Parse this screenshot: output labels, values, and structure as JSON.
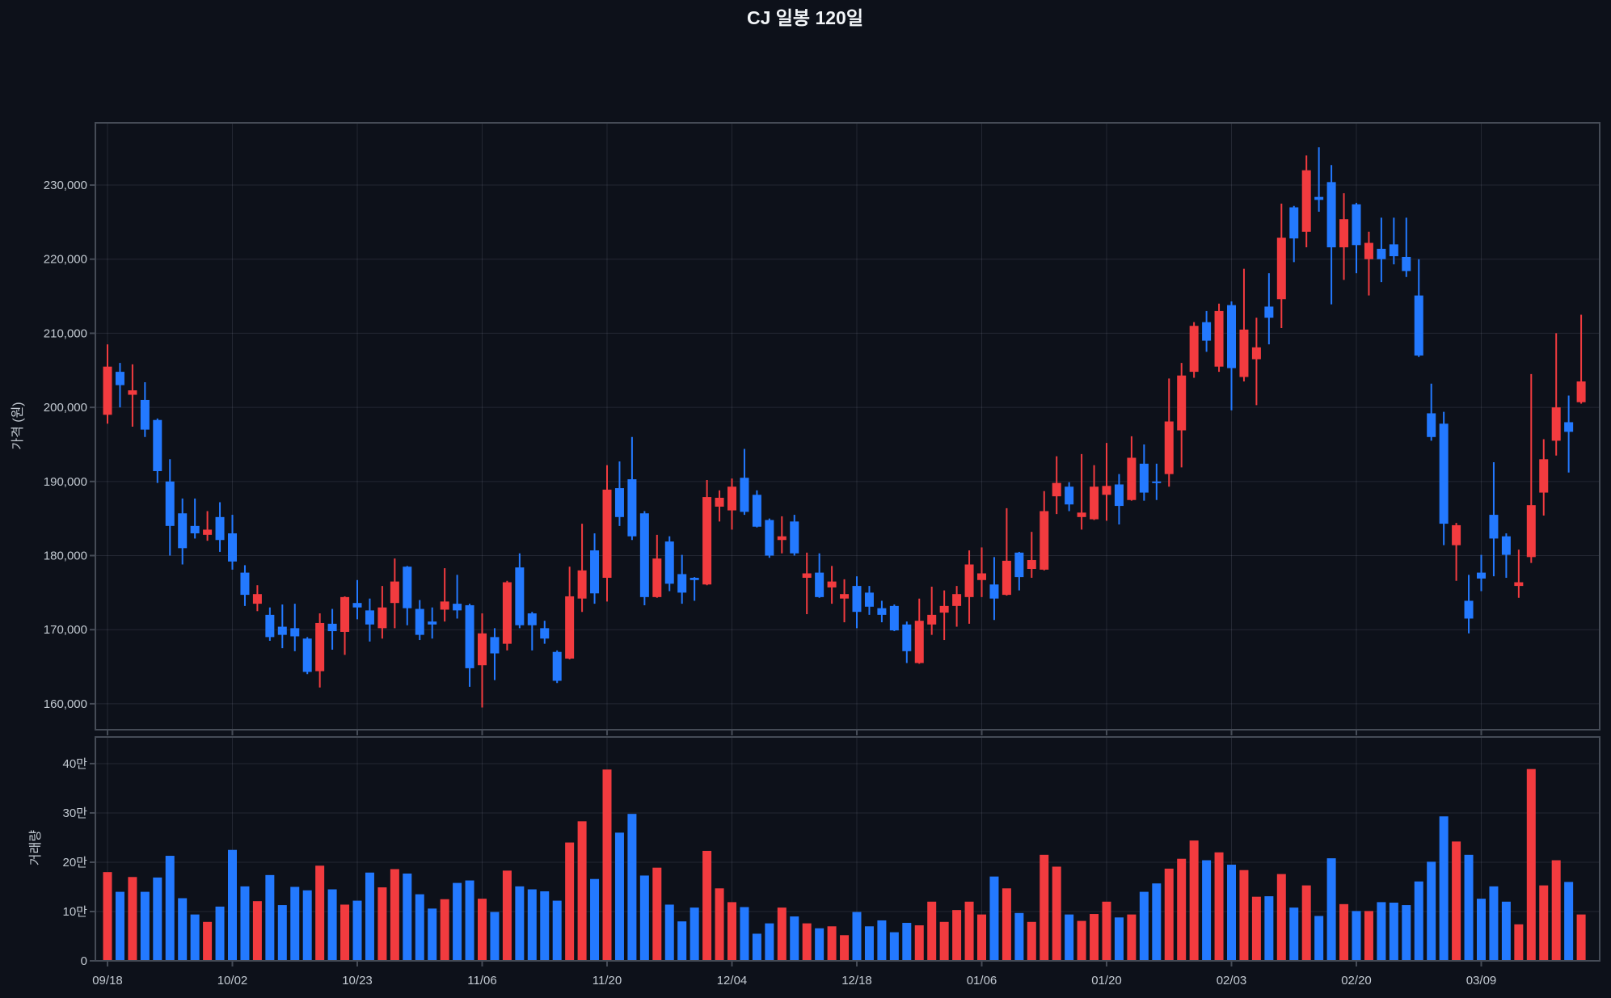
{
  "title": "CJ 일봉 120일",
  "colors": {
    "background": "#0d111a",
    "up": "#f23b3f",
    "down": "#2379ff",
    "grid": "rgba(170,180,200,0.14)",
    "border": "#454b56",
    "tick_text": "#c3cad2",
    "title_text": "#f2f5f8"
  },
  "chart_data": {
    "type": "candlestick",
    "title": "CJ 일봉 120일",
    "legend": "none",
    "grid": true,
    "price_axis": {
      "label": "가격 (원)",
      "ticks": [
        160000,
        170000,
        180000,
        190000,
        200000,
        210000,
        220000,
        230000
      ],
      "tick_labels": [
        "160,000",
        "170,000",
        "180,000",
        "190,000",
        "200,000",
        "210,000",
        "220,000",
        "230,000"
      ],
      "ylim": [
        156500,
        238400
      ]
    },
    "volume_axis": {
      "label": "거래량",
      "ticks": [
        0,
        100000,
        200000,
        300000,
        400000
      ],
      "tick_labels": [
        "0",
        "10만",
        "20만",
        "30만",
        "40만"
      ],
      "ylim": [
        0,
        454000
      ]
    },
    "x_axis": {
      "tick_labels": [
        "09/18",
        "10/02",
        "10/23",
        "11/06",
        "11/20",
        "12/04",
        "12/18",
        "01/06",
        "01/20",
        "02/03",
        "02/20",
        "03/09"
      ],
      "tick_candle_index": [
        1,
        11,
        21,
        31,
        41,
        51,
        61,
        71,
        81,
        91,
        101,
        111
      ]
    },
    "candles_note": "each row = [open, high, low, close, volume]",
    "candles": [
      [
        199000,
        208500,
        197800,
        205500,
        180000
      ],
      [
        204800,
        206000,
        200000,
        203000,
        140000
      ],
      [
        201700,
        205800,
        197400,
        202300,
        170000
      ],
      [
        201000,
        203400,
        196000,
        197000,
        140000
      ],
      [
        198300,
        198500,
        189800,
        191400,
        169000
      ],
      [
        190000,
        193000,
        180000,
        184000,
        213000
      ],
      [
        185700,
        187700,
        178800,
        181000,
        127000
      ],
      [
        184000,
        187700,
        182300,
        183000,
        94000
      ],
      [
        182800,
        186000,
        182000,
        183500,
        79000
      ],
      [
        185200,
        187200,
        180500,
        182100,
        110000
      ],
      [
        183000,
        185500,
        178100,
        179200,
        225000
      ],
      [
        177700,
        178700,
        173200,
        174700,
        151000
      ],
      [
        173500,
        176000,
        172500,
        174800,
        121000
      ],
      [
        172000,
        173000,
        168500,
        169000,
        174000
      ],
      [
        170400,
        173400,
        167500,
        169300,
        113000
      ],
      [
        170200,
        173500,
        167100,
        169100,
        150000
      ],
      [
        168800,
        169000,
        164000,
        164300,
        143000
      ],
      [
        164400,
        172200,
        162200,
        170900,
        193000
      ],
      [
        170800,
        172800,
        167300,
        169800,
        145000
      ],
      [
        169700,
        174500,
        166600,
        174400,
        114000
      ],
      [
        173600,
        176700,
        171400,
        173000,
        122000
      ],
      [
        172600,
        174200,
        168400,
        170700,
        179000
      ],
      [
        170200,
        175900,
        168800,
        173000,
        149000
      ],
      [
        173600,
        179600,
        170200,
        176500,
        186000
      ],
      [
        178500,
        178600,
        170600,
        172900,
        177000
      ],
      [
        172800,
        174000,
        168600,
        169300,
        135000
      ],
      [
        171100,
        173000,
        168800,
        170700,
        106000
      ],
      [
        172700,
        178300,
        171100,
        173800,
        125000
      ],
      [
        173500,
        177400,
        171500,
        172600,
        158000
      ],
      [
        173300,
        173500,
        162300,
        164800,
        163000
      ],
      [
        165200,
        172200,
        159500,
        169500,
        126000
      ],
      [
        169000,
        170200,
        163200,
        166800,
        99000
      ],
      [
        168100,
        176600,
        167200,
        176400,
        183000
      ],
      [
        178400,
        180300,
        170200,
        170600,
        151000
      ],
      [
        172200,
        172400,
        167200,
        170600,
        145000
      ],
      [
        170200,
        171200,
        168100,
        168800,
        141000
      ],
      [
        167000,
        167200,
        162800,
        163100,
        122000
      ],
      [
        166100,
        178500,
        166000,
        174500,
        240000
      ],
      [
        174200,
        184300,
        172400,
        178000,
        283000
      ],
      [
        180700,
        183000,
        173500,
        174900,
        166000
      ],
      [
        177000,
        192200,
        173800,
        188900,
        388000
      ],
      [
        189100,
        192700,
        184000,
        185200,
        260000
      ],
      [
        190300,
        196000,
        182100,
        182600,
        298000
      ],
      [
        185700,
        186000,
        173300,
        174400,
        173000
      ],
      [
        174400,
        182800,
        174300,
        179600,
        189000
      ],
      [
        181900,
        182600,
        175200,
        176200,
        114000
      ],
      [
        177500,
        180100,
        173500,
        175000,
        80000
      ],
      [
        177000,
        177100,
        173900,
        176700,
        108000
      ],
      [
        176100,
        190200,
        176000,
        187900,
        223000
      ],
      [
        186600,
        188800,
        184600,
        187800,
        147000
      ],
      [
        186100,
        190400,
        183500,
        189300,
        119000
      ],
      [
        190500,
        194400,
        185500,
        185900,
        109000
      ],
      [
        188200,
        188800,
        183800,
        183900,
        55000
      ],
      [
        184800,
        185000,
        179700,
        180000,
        76000
      ],
      [
        182100,
        185300,
        180300,
        182600,
        108000
      ],
      [
        184600,
        185500,
        180000,
        180300,
        90000
      ],
      [
        177000,
        180400,
        172100,
        177600,
        76000
      ],
      [
        177700,
        180300,
        174300,
        174400,
        66000
      ],
      [
        175700,
        178600,
        173500,
        176500,
        70000
      ],
      [
        174200,
        176800,
        171000,
        174800,
        52000
      ],
      [
        175900,
        177200,
        170200,
        172400,
        99000
      ],
      [
        175000,
        175900,
        172000,
        173100,
        70000
      ],
      [
        172900,
        173900,
        171000,
        172000,
        82000
      ],
      [
        173200,
        173400,
        169800,
        169900,
        58000
      ],
      [
        170700,
        171100,
        165500,
        167100,
        77000
      ],
      [
        165500,
        174200,
        165400,
        171200,
        72000
      ],
      [
        170700,
        175800,
        169300,
        172000,
        120000
      ],
      [
        172300,
        175300,
        168600,
        173200,
        79000
      ],
      [
        173200,
        175900,
        170400,
        174800,
        103000
      ],
      [
        174400,
        180700,
        170800,
        178800,
        120000
      ],
      [
        176700,
        181100,
        174400,
        177600,
        94000
      ],
      [
        176100,
        179800,
        171300,
        174200,
        171000
      ],
      [
        174700,
        186400,
        174600,
        179300,
        147000
      ],
      [
        180400,
        180500,
        175300,
        177100,
        97000
      ],
      [
        178200,
        183200,
        177000,
        179400,
        79000
      ],
      [
        178100,
        188700,
        178000,
        186000,
        215000
      ],
      [
        188000,
        193400,
        185600,
        189800,
        191000
      ],
      [
        189300,
        189900,
        186000,
        186900,
        94000
      ],
      [
        185200,
        193700,
        183500,
        185800,
        81000
      ],
      [
        184900,
        192200,
        184800,
        189300,
        95000
      ],
      [
        188200,
        195200,
        184700,
        189400,
        120000
      ],
      [
        189600,
        191000,
        184200,
        186700,
        88000
      ],
      [
        187500,
        196100,
        187400,
        193200,
        94000
      ],
      [
        192400,
        195000,
        187400,
        188500,
        140000
      ],
      [
        190000,
        192400,
        187500,
        189800,
        157000
      ],
      [
        191000,
        203900,
        189300,
        198100,
        187000
      ],
      [
        196900,
        206000,
        191900,
        204300,
        207000
      ],
      [
        204800,
        211500,
        204000,
        211000,
        244000
      ],
      [
        211500,
        213000,
        207500,
        209000,
        204000
      ],
      [
        205500,
        214000,
        204800,
        213000,
        220000
      ],
      [
        213800,
        214300,
        199600,
        205300,
        195000
      ],
      [
        204100,
        218700,
        203500,
        210500,
        184000
      ],
      [
        206500,
        212100,
        200300,
        208100,
        130000
      ],
      [
        213600,
        218100,
        208500,
        212100,
        131000
      ],
      [
        214600,
        227500,
        210700,
        222900,
        176000
      ],
      [
        227000,
        227200,
        219600,
        222800,
        108000
      ],
      [
        223700,
        234000,
        221600,
        232000,
        153000
      ],
      [
        228400,
        235100,
        226400,
        228000,
        91000
      ],
      [
        230400,
        232700,
        213900,
        221600,
        208000
      ],
      [
        221600,
        228900,
        217200,
        225400,
        115000
      ],
      [
        227400,
        227600,
        218100,
        221900,
        101000
      ],
      [
        220000,
        223700,
        215100,
        222200,
        101000
      ],
      [
        221400,
        225600,
        216900,
        220000,
        119000
      ],
      [
        222000,
        225600,
        219300,
        220400,
        118000
      ],
      [
        220300,
        225600,
        217600,
        218400,
        113000
      ],
      [
        215100,
        220000,
        206800,
        207000,
        161000
      ],
      [
        199200,
        203200,
        195500,
        196000,
        201000
      ],
      [
        197800,
        199400,
        181400,
        184300,
        293000
      ],
      [
        181400,
        184400,
        176600,
        184100,
        242000
      ],
      [
        173900,
        177400,
        169500,
        171500,
        215000
      ],
      [
        177700,
        180100,
        175200,
        176900,
        126000
      ],
      [
        185500,
        192600,
        177200,
        182300,
        151000
      ],
      [
        182600,
        183000,
        177000,
        180100,
        120000
      ],
      [
        175900,
        180800,
        174300,
        176400,
        74000
      ],
      [
        179800,
        204500,
        179000,
        186800,
        389000
      ],
      [
        188500,
        195700,
        185400,
        193000,
        153000
      ],
      [
        195500,
        210000,
        193500,
        200000,
        204000
      ],
      [
        198000,
        201600,
        191200,
        196700,
        160000
      ],
      [
        200700,
        212500,
        200500,
        203500,
        94000
      ]
    ]
  }
}
